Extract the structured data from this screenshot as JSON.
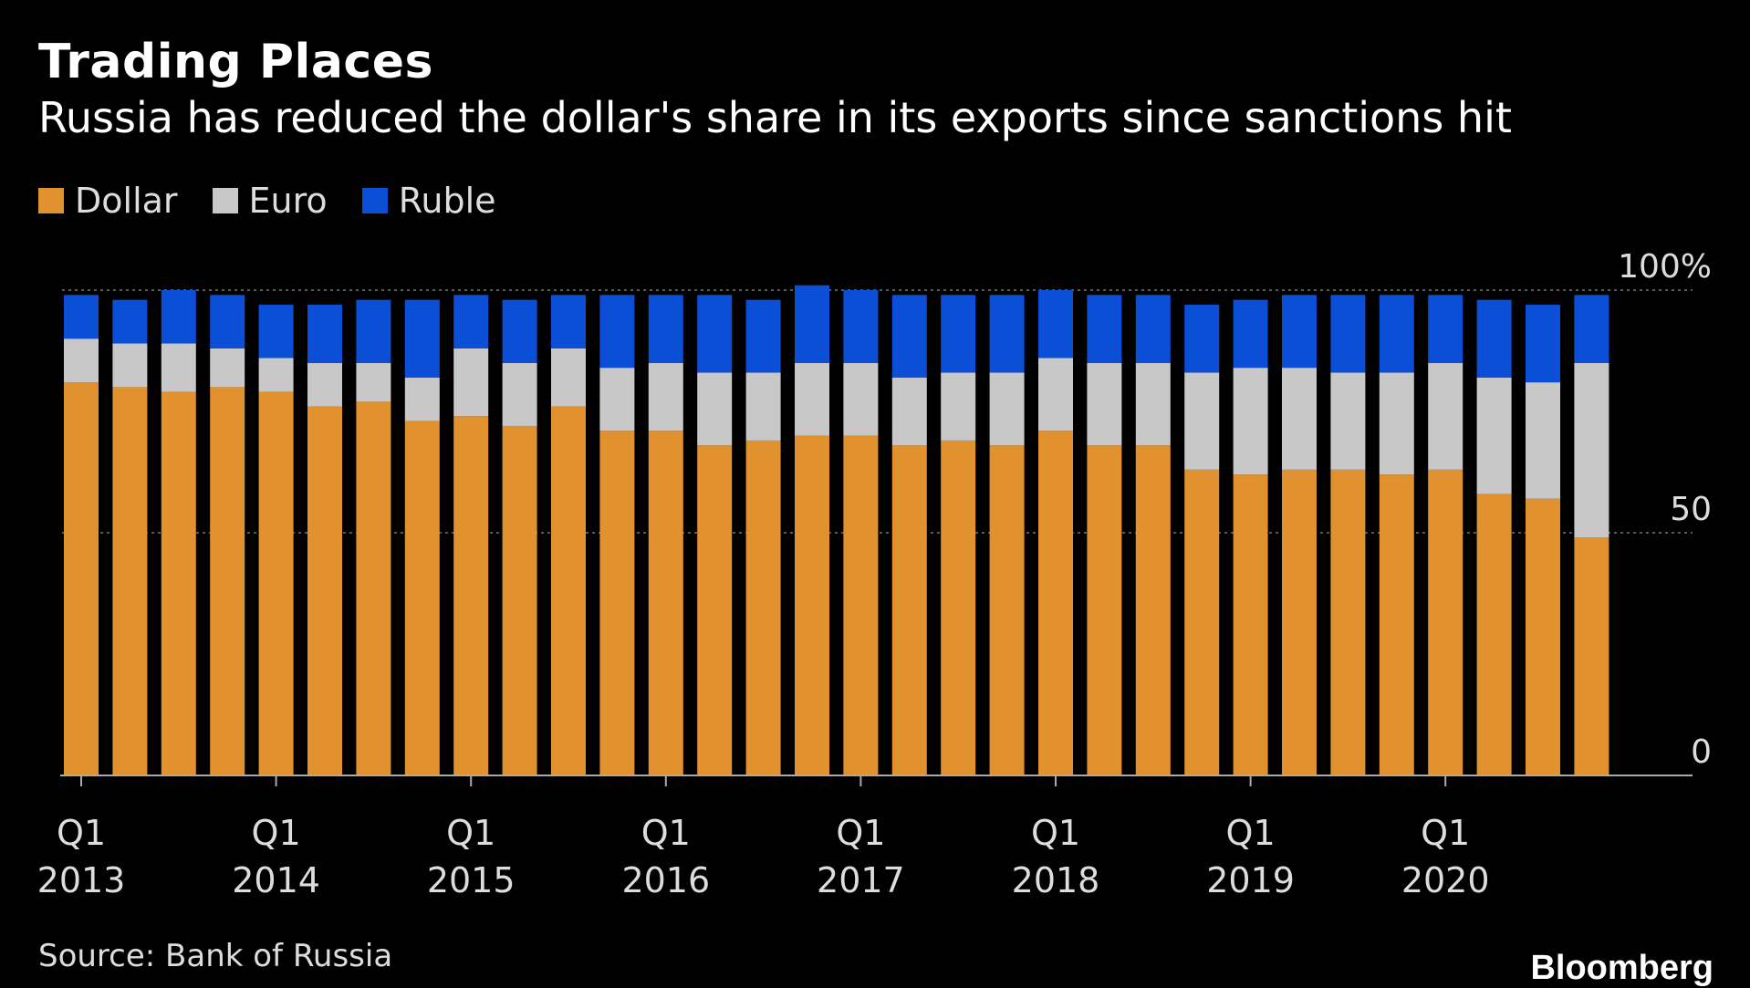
{
  "colors": {
    "background": "#000000",
    "dollar": "#e2912f",
    "euro": "#c8c8c8",
    "ruble": "#0a4fd6",
    "grid": "#777777",
    "axis": "#aaaaaa",
    "text": "#ffffff",
    "muted": "#dddddd"
  },
  "source": "Source: Bank of Russia",
  "brand": "Bloomberg",
  "chart_data": {
    "type": "bar",
    "stacked": true,
    "title": "Trading Places",
    "subtitle": "Russia has reduced the dollar's share in its exports since sanctions hit",
    "xlabel": "",
    "ylabel": "",
    "ylim": [
      0,
      100
    ],
    "yticks": [
      {
        "value": 100,
        "label": "100%"
      },
      {
        "value": 50,
        "label": "50"
      },
      {
        "value": 0,
        "label": "0"
      }
    ],
    "legend_position": "top-left",
    "categories": [
      "Q1 2013",
      "Q2 2013",
      "Q3 2013",
      "Q4 2013",
      "Q1 2014",
      "Q2 2014",
      "Q3 2014",
      "Q4 2014",
      "Q1 2015",
      "Q2 2015",
      "Q3 2015",
      "Q4 2015",
      "Q1 2016",
      "Q2 2016",
      "Q3 2016",
      "Q4 2016",
      "Q1 2017",
      "Q2 2017",
      "Q3 2017",
      "Q4 2017",
      "Q1 2018",
      "Q2 2018",
      "Q3 2018",
      "Q4 2018",
      "Q1 2019",
      "Q2 2019",
      "Q3 2019",
      "Q4 2019",
      "Q1 2020",
      "Q2 2020",
      "Q3 2020",
      "Q4 2020"
    ],
    "xtick_labels": [
      {
        "index": 0,
        "line1": "Q1",
        "line2": "2013"
      },
      {
        "index": 4,
        "line1": "Q1",
        "line2": "2014"
      },
      {
        "index": 8,
        "line1": "Q1",
        "line2": "2015"
      },
      {
        "index": 12,
        "line1": "Q1",
        "line2": "2016"
      },
      {
        "index": 16,
        "line1": "Q1",
        "line2": "2017"
      },
      {
        "index": 20,
        "line1": "Q1",
        "line2": "2018"
      },
      {
        "index": 24,
        "line1": "Q1",
        "line2": "2019"
      },
      {
        "index": 28,
        "line1": "Q1",
        "line2": "2020"
      }
    ],
    "series": [
      {
        "name": "Dollar",
        "key": "dollar",
        "values": [
          81,
          80,
          79,
          80,
          79,
          76,
          77,
          73,
          74,
          72,
          76,
          71,
          71,
          68,
          69,
          70,
          70,
          68,
          69,
          68,
          71,
          68,
          68,
          63,
          62,
          63,
          63,
          62,
          63,
          58,
          57,
          49
        ]
      },
      {
        "name": "Euro",
        "key": "euro",
        "values": [
          9,
          9,
          10,
          8,
          7,
          9,
          8,
          9,
          14,
          13,
          12,
          13,
          14,
          15,
          14,
          15,
          15,
          14,
          14,
          15,
          15,
          17,
          17,
          20,
          22,
          21,
          20,
          21,
          22,
          24,
          24,
          36
        ]
      },
      {
        "name": "Ruble",
        "key": "ruble",
        "values": [
          9,
          9,
          11,
          11,
          11,
          12,
          13,
          16,
          11,
          13,
          11,
          15,
          14,
          16,
          15,
          16,
          15,
          17,
          16,
          16,
          14,
          14,
          14,
          14,
          14,
          15,
          16,
          16,
          14,
          16,
          16,
          14
        ]
      }
    ]
  }
}
